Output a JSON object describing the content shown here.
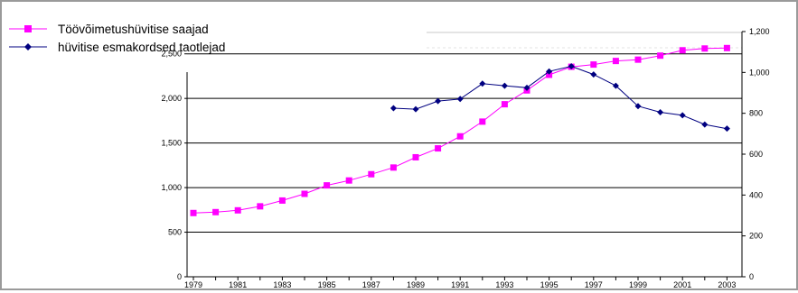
{
  "chart_data": {
    "type": "line",
    "title": "",
    "xlabel": "",
    "ylabel": "",
    "x": [
      1979,
      1980,
      1981,
      1982,
      1983,
      1984,
      1985,
      1986,
      1987,
      1988,
      1989,
      1990,
      1991,
      1992,
      1993,
      1994,
      1995,
      1996,
      1997,
      1998,
      1999,
      2000,
      2001,
      2002,
      2003
    ],
    "x_tick_labels": [
      "1979",
      "1981",
      "1983",
      "1985",
      "1987",
      "1989",
      "1991",
      "1993",
      "1995",
      "1997",
      "1999",
      "2001",
      "2003"
    ],
    "y_left_ticks": [
      "0",
      "500",
      "1,000",
      "1,500",
      "2,000",
      "2,500"
    ],
    "y_right_ticks": [
      "0",
      "200",
      "400",
      "600",
      "800",
      "1,000",
      "1,200"
    ],
    "ylim_left": [
      0,
      2750
    ],
    "ylim_right": [
      0,
      1200
    ],
    "grid": "horizontal",
    "legend_position": "top-left",
    "series": [
      {
        "name": "Töövõimetushüvitise saajad",
        "axis": "left",
        "color": "#ff00ff",
        "marker": "square",
        "values": [
          715,
          725,
          745,
          790,
          855,
          930,
          1025,
          1080,
          1150,
          1225,
          1340,
          1440,
          1575,
          1740,
          1935,
          2090,
          2265,
          2355,
          2380,
          2420,
          2435,
          2480,
          2540,
          2560,
          2565
        ]
      },
      {
        "name": "hüvitise esmakordsed taotlejad",
        "axis": "right",
        "color": "#000080",
        "marker": "diamond",
        "values": [
          null,
          null,
          null,
          null,
          null,
          null,
          null,
          null,
          null,
          825,
          820,
          860,
          870,
          945,
          935,
          925,
          1005,
          1030,
          990,
          935,
          835,
          805,
          790,
          745,
          725
        ]
      }
    ]
  }
}
